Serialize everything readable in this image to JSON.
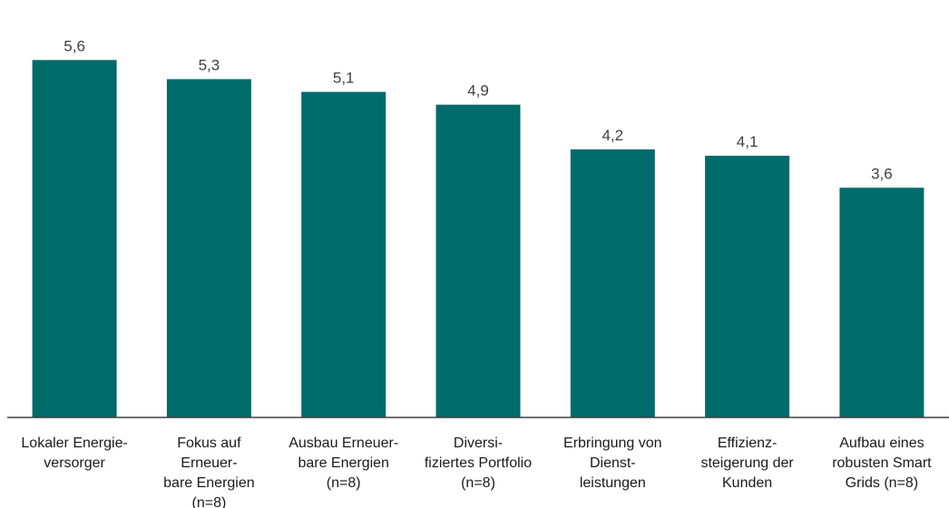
{
  "chart_data": {
    "type": "bar",
    "categories": [
      [
        "Lokaler Energie-",
        "versorger"
      ],
      [
        "Fokus auf",
        "Erneuer-",
        "bare Energien",
        "(n=8)"
      ],
      [
        "Ausbau Erneuer-",
        "bare Energien",
        "(n=8)"
      ],
      [
        "Diversi-",
        "fiziertes Portfolio",
        "(n=8)"
      ],
      [
        "Erbringung von",
        "Dienst-",
        "leistungen"
      ],
      [
        "Effizienz-",
        "steigerung der",
        "Kunden"
      ],
      [
        "Aufbau eines",
        "robusten Smart",
        "Grids (n=8)"
      ]
    ],
    "values": [
      5.6,
      5.3,
      5.1,
      4.9,
      4.2,
      4.1,
      3.6
    ],
    "value_labels": [
      "5,6",
      "5,3",
      "5,1",
      "4,9",
      "4,2",
      "4,1",
      "3,6"
    ],
    "title": "",
    "xlabel": "",
    "ylabel": "",
    "ylim": [
      0,
      6.2
    ],
    "grid": false,
    "legend": "none",
    "colors": {
      "bar": "#006B6B",
      "axis": "#404040",
      "value_text": "#404040",
      "category_text": "#1a1a1a"
    }
  }
}
